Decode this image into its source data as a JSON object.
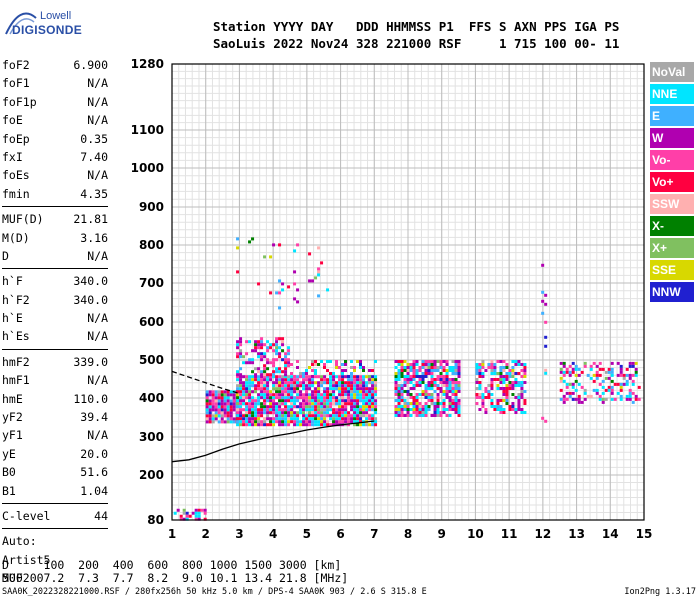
{
  "logo": {
    "line1": "Lowell",
    "line2": "DIGISONDE"
  },
  "header": {
    "line1": "Station YYYY DAY   DDD HHMMSS P1  FFS S AXN PPS IGA PS",
    "line2": "SaoLuis 2022 Nov24 328 221000 RSF     1 715 100 00- 11"
  },
  "parameters": {
    "group1": [
      {
        "name": "foF2",
        "value": "6.900"
      },
      {
        "name": "foF1",
        "value": "N/A"
      },
      {
        "name": "foF1p",
        "value": "N/A"
      },
      {
        "name": "foE",
        "value": "N/A"
      },
      {
        "name": "foEp",
        "value": "0.35"
      },
      {
        "name": "fxI",
        "value": "7.40"
      },
      {
        "name": "foEs",
        "value": "N/A"
      },
      {
        "name": "fmin",
        "value": "4.35"
      }
    ],
    "group2": [
      {
        "name": "MUF(D)",
        "value": "21.81"
      },
      {
        "name": "M(D)",
        "value": "3.16"
      },
      {
        "name": "D",
        "value": "N/A"
      }
    ],
    "group3": [
      {
        "name": "h`F",
        "value": "340.0"
      },
      {
        "name": "h`F2",
        "value": "340.0"
      },
      {
        "name": "h`E",
        "value": "N/A"
      },
      {
        "name": "h`Es",
        "value": "N/A"
      }
    ],
    "group4": [
      {
        "name": "hmF2",
        "value": "339.0"
      },
      {
        "name": "hmF1",
        "value": "N/A"
      },
      {
        "name": "hmE",
        "value": "110.0"
      },
      {
        "name": "yF2",
        "value": "39.4"
      },
      {
        "name": "yF1",
        "value": "N/A"
      },
      {
        "name": "yE",
        "value": "20.0"
      },
      {
        "name": "B0",
        "value": "51.6"
      },
      {
        "name": "B1",
        "value": "1.04"
      }
    ],
    "group5": [
      {
        "name": "C-level",
        "value": "44"
      }
    ],
    "auto_lines": [
      "Auto:",
      "Artist5",
      "500200"
    ]
  },
  "legend": [
    {
      "label": "NoVal",
      "color": "#a8a8a8"
    },
    {
      "label": "NNE",
      "color": "#00e5ff"
    },
    {
      "label": "E",
      "color": "#3fb0ff"
    },
    {
      "label": "W",
      "color": "#b000b0"
    },
    {
      "label": "Vo-",
      "color": "#ff3fa8"
    },
    {
      "label": "Vo+",
      "color": "#ff0040"
    },
    {
      "label": "SSW",
      "color": "#ffb0b0"
    },
    {
      "label": "X-",
      "color": "#008000"
    },
    {
      "label": "X+",
      "color": "#80c060"
    },
    {
      "label": "SSE",
      "color": "#d8d800"
    },
    {
      "label": "NNW",
      "color": "#2020d0"
    }
  ],
  "muf_table": {
    "line1": "D     100  200  400  600  800 1000 1500 3000 [km]",
    "line2": "MUF   7.2  7.3  7.7  8.2  9.0 10.1 13.4 21.8 [MHz]"
  },
  "footer": {
    "left": "SAA0K_2022328221000.RSF / 280fx256h 50 kHz 5.0 km / DPS-4 SAA0K 903 / 2.6 S 315.8 E",
    "right": "Ion2Png 1.3.17"
  },
  "chart_data": {
    "type": "scatter",
    "xlabel": "",
    "ylabel": "",
    "x_ticks": [
      1,
      2,
      3,
      4,
      5,
      6,
      7,
      8,
      9,
      10,
      11,
      12,
      13,
      14,
      15
    ],
    "y_ticks": [
      80,
      200,
      300,
      400,
      500,
      600,
      700,
      800,
      900,
      1000,
      1100,
      1280
    ],
    "xlim": [
      1,
      15
    ],
    "ylim": [
      80,
      1280
    ],
    "grid": true,
    "scatter_regions": [
      {
        "xmin": 2.0,
        "xmax": 2.9,
        "ymin": 335,
        "ymax": 420,
        "density": 0.9
      },
      {
        "xmin": 2.9,
        "xmax": 7.05,
        "ymin": 330,
        "ymax": 460,
        "density": 0.9
      },
      {
        "xmin": 2.9,
        "xmax": 4.5,
        "ymin": 460,
        "ymax": 560,
        "density": 0.45
      },
      {
        "xmin": 4.5,
        "xmax": 7.05,
        "ymin": 460,
        "ymax": 500,
        "density": 0.35
      },
      {
        "xmin": 2.9,
        "xmax": 5.6,
        "ymin": 630,
        "ymax": 820,
        "density": 0.05
      },
      {
        "xmin": 7.6,
        "xmax": 9.5,
        "ymin": 355,
        "ymax": 500,
        "density": 0.75
      },
      {
        "xmin": 10.0,
        "xmax": 11.5,
        "ymin": 360,
        "ymax": 500,
        "density": 0.55
      },
      {
        "xmin": 12.5,
        "xmax": 14.9,
        "ymin": 385,
        "ymax": 495,
        "density": 0.4
      },
      {
        "xmin": 1.05,
        "xmax": 2.0,
        "ymin": 82,
        "ymax": 110,
        "density": 0.7
      },
      {
        "xmin": 11.95,
        "xmax": 12.1,
        "ymin": 300,
        "ymax": 790,
        "density": 0.08
      }
    ],
    "solid_profile": {
      "x": [
        1.0,
        1.5,
        2.0,
        2.5,
        3.0,
        3.5,
        4.0,
        4.5,
        5.0,
        5.5,
        6.0,
        6.5,
        7.0
      ],
      "y": [
        235,
        240,
        252,
        268,
        282,
        292,
        302,
        309,
        318,
        325,
        331,
        336,
        341
      ]
    },
    "dashed_profile": {
      "x": [
        1.0,
        1.5,
        2.0,
        2.5,
        3.0
      ],
      "y": [
        470,
        455,
        440,
        425,
        412
      ]
    }
  }
}
